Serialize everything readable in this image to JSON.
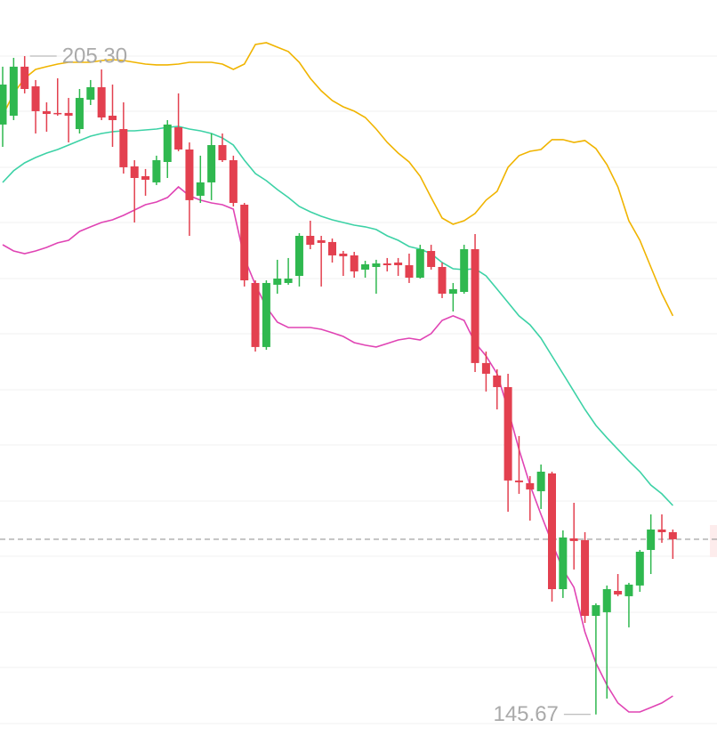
{
  "chart_data": {
    "type": "candlestick",
    "up_color": "#2fb84f",
    "down_color": "#e3404f",
    "open": [
      199.1,
      199.9,
      204.34,
      202.56,
      200.31,
      200.15,
      200.15,
      198.69,
      201.35,
      202.48,
      199.9,
      198.69,
      195.31,
      194.42,
      193.86,
      195.71,
      198.85,
      196.84,
      192.65,
      193.86,
      197.24,
      195.87,
      191.84,
      184.75,
      178.95,
      184.59,
      184.75,
      185.39,
      189.02,
      188.62,
      188.46,
      187.41,
      187.25,
      185.96,
      186.2,
      186.52,
      186.6,
      186.36,
      185.23,
      187.65,
      186.2,
      183.78,
      183.94,
      187.81,
      177.5,
      176.37,
      175.32,
      166.86,
      166.62,
      165.89,
      167.5,
      157.02,
      161.62,
      161.46,
      154.6,
      154.93,
      156.86,
      156.38,
      157.35,
      160.57,
      162.42,
      162.18
    ],
    "high": [
      204.34,
      205.14,
      205.3,
      203.13,
      201.11,
      203.29,
      201.51,
      202.32,
      203.13,
      204.09,
      202.72,
      201.11,
      195.87,
      195.07,
      196.28,
      199.5,
      201.92,
      197.48,
      196.28,
      198.29,
      198.29,
      196.28,
      192.0,
      184.99,
      184.99,
      186.85,
      187.01,
      189.26,
      190.39,
      189.02,
      188.78,
      187.65,
      187.57,
      186.76,
      186.85,
      187.01,
      187.01,
      187.41,
      188.21,
      188.21,
      186.6,
      184.75,
      188.21,
      189.18,
      178.54,
      176.93,
      176.53,
      170.89,
      167.26,
      168.31,
      167.66,
      162.34,
      164.84,
      162.18,
      155.73,
      157.35,
      158.39,
      157.59,
      160.57,
      163.79,
      163.79,
      162.42
    ],
    "low": [
      197.08,
      199.5,
      201.92,
      198.29,
      198.45,
      199.9,
      197.48,
      198.29,
      200.87,
      199.5,
      197.08,
      194.66,
      190.23,
      192.65,
      193.62,
      194.26,
      196.68,
      189.02,
      192.0,
      192.25,
      195.71,
      191.68,
      184.43,
      178.54,
      178.7,
      183.78,
      184.59,
      184.43,
      187.81,
      184.43,
      186.6,
      185.39,
      185.23,
      185.23,
      183.78,
      185.8,
      185.39,
      184.75,
      185.15,
      185.96,
      183.38,
      182.17,
      183.78,
      176.69,
      174.92,
      173.3,
      164.03,
      165.65,
      163.23,
      164.28,
      155.89,
      156.22,
      158.8,
      153.96,
      145.67,
      147.11,
      156.38,
      153.56,
      156.78,
      158.39,
      161.22,
      159.76
    ],
    "close": [
      202.72,
      204.34,
      202.32,
      200.31,
      200.06,
      200.06,
      199.9,
      201.51,
      202.48,
      199.74,
      199.5,
      195.23,
      194.26,
      194.1,
      195.87,
      199.1,
      196.84,
      192.25,
      193.86,
      197.24,
      195.87,
      192.0,
      184.99,
      178.95,
      184.75,
      185.15,
      185.15,
      189.02,
      188.21,
      188.38,
      187.25,
      187.17,
      185.8,
      186.44,
      186.52,
      186.36,
      186.36,
      185.23,
      187.81,
      186.2,
      183.78,
      184.19,
      187.81,
      177.5,
      176.53,
      175.32,
      166.86,
      166.7,
      166.05,
      167.66,
      157.02,
      161.7,
      161.38,
      154.6,
      155.57,
      157.02,
      156.54,
      157.43,
      160.41,
      162.42,
      162.18,
      161.54
    ],
    "bands": [
      {
        "color": "#f0b400",
        "values": [
          199.9,
          201.92,
          203.29,
          204.09,
          204.34,
          204.58,
          204.74,
          204.74,
          204.74,
          204.9,
          204.98,
          204.9,
          204.74,
          204.58,
          204.5,
          204.5,
          204.58,
          204.74,
          204.74,
          204.74,
          204.58,
          204.09,
          204.58,
          206.35,
          206.51,
          206.11,
          205.71,
          204.74,
          203.29,
          202.16,
          201.27,
          200.71,
          200.31,
          199.74,
          198.69,
          197.48,
          196.52,
          195.71,
          194.42,
          192.49,
          190.63,
          190.07,
          190.39,
          191.04,
          192.25,
          193.05,
          195.23,
          196.28,
          196.68,
          196.84,
          197.73,
          197.73,
          197.48,
          197.65,
          196.92,
          195.47,
          193.45,
          190.39,
          188.62,
          186.2,
          183.78,
          181.77
        ]
      },
      {
        "color": "#3dd2a6",
        "values": [
          193.86,
          194.91,
          195.63,
          196.11,
          196.52,
          196.84,
          197.24,
          197.65,
          198.05,
          198.29,
          198.45,
          198.53,
          198.53,
          198.61,
          198.69,
          198.85,
          198.93,
          198.69,
          198.53,
          198.29,
          197.89,
          197.24,
          195.87,
          194.66,
          194.02,
          193.21,
          192.49,
          191.68,
          191.2,
          190.79,
          190.47,
          190.23,
          189.99,
          189.83,
          189.59,
          189.02,
          188.62,
          188.05,
          187.81,
          187.41,
          186.6,
          186.04,
          185.96,
          186.04,
          185.39,
          184.19,
          182.98,
          181.77,
          180.96,
          179.75,
          178.14,
          176.53,
          174.92,
          173.3,
          171.85,
          170.73,
          169.68,
          168.63,
          167.66,
          166.45,
          165.65,
          164.6
        ]
      },
      {
        "color": "#e044b4",
        "values": [
          188.21,
          187.65,
          187.41,
          187.65,
          187.97,
          188.38,
          188.62,
          189.42,
          189.83,
          190.23,
          190.47,
          190.87,
          191.36,
          191.84,
          192.08,
          192.49,
          193.45,
          192.65,
          192.25,
          192.0,
          191.84,
          191.44,
          187.01,
          184.59,
          182.57,
          181.2,
          180.72,
          180.72,
          180.72,
          180.56,
          180.24,
          179.91,
          179.35,
          179.11,
          178.95,
          179.27,
          179.59,
          179.75,
          179.59,
          180.16,
          181.36,
          181.77,
          181.36,
          179.35,
          178.14,
          176.53,
          173.3,
          169.68,
          166.45,
          163.79,
          161.22,
          158.8,
          157.18,
          153.15,
          150.33,
          148.32,
          146.71,
          145.9,
          145.9,
          146.3,
          146.71,
          147.35
        ]
      }
    ],
    "ylim": [
      143.72,
      210.38
    ],
    "max_label": "205.30",
    "min_label": "145.67"
  }
}
